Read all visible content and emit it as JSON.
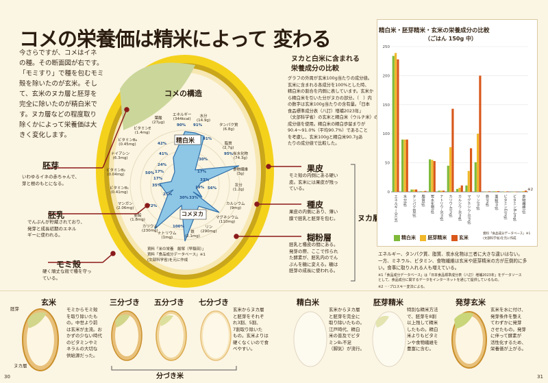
{
  "title": "コメの栄養価は精米によって 変わる",
  "intro": [
    "今さらですが、コメはイネ",
    "の種。その断面図が右です。",
    "「モミすり」で種を包むモミ",
    "殻を除いたのが玄米。そし",
    "て、玄米のヌカ層と胚芽を",
    "完全に除いたのが精白米で",
    "す。ヌカ層などの程度取り",
    "除くかによって栄養価は大",
    "きく変化します。"
  ],
  "parts": {
    "haiga": {
      "title": "胚芽",
      "text": [
        "いわゆるイネの赤ちゃんで、",
        "芽と根のもとになる。"
      ]
    },
    "hainyu": {
      "title": "胚乳",
      "text": [
        "でんぷんが貯蔵されており、",
        "発芽と成長初期のエネル",
        "ギーに使われる。"
      ]
    },
    "momigara": {
      "title": "モミ殻",
      "text": [
        "硬く頑丈な殻で種を守っ",
        "ている。"
      ]
    },
    "kahi": {
      "title": "果皮",
      "text": [
        "モミ殻の内側にある硬い",
        "皮。玄米には果皮が残っ",
        "ている。"
      ]
    },
    "shuhi": {
      "title": "種皮",
      "text": [
        "果皮の内側にあり、薄い",
        "膜で胚乳と胚芽を包む。"
      ]
    },
    "hofunso": {
      "title": "糊粉層",
      "text": [
        "胚乳と種皮の間にある。",
        "発芽の際、ここで作られ",
        "た酵素が、胚乳内のでん",
        "ぷんを糖に変える。糖は",
        "胚芽の成長に使われる。"
      ]
    },
    "nukaso": "ヌカ層"
  },
  "structure": {
    "title": "コメの構造",
    "seihaku": "精白米",
    "komenuka": "コメヌカ",
    "nutrients": [
      {
        "name": "エネルギー",
        "val": "(344kcal)",
        "pct": "90%",
        "pct2": ""
      },
      {
        "name": "水分",
        "val": "(14.9g)",
        "pct": "91%",
        "pct2": ""
      },
      {
        "name": "タンパク質",
        "val": "(6.8g)",
        "pct": "91%",
        "pct2": ""
      },
      {
        "name": "脂質",
        "val": "(2.7g)",
        "pct": "41%",
        "pct2": ""
      },
      {
        "name": "炭水化物",
        "val": "(74.3g)",
        "pct": "95%",
        "pct2": ""
      },
      {
        "name": "食物繊維",
        "val": "(3g)",
        "pct": "30%",
        "pct2": ""
      },
      {
        "name": "灰分",
        "val": "(1.2g)",
        "pct": "17%",
        "pct2": ""
      },
      {
        "name": "カルシウム",
        "val": "(9mg)",
        "pct": "33%",
        "pct2": ""
      },
      {
        "name": "マグネシウム",
        "val": "(110mg)",
        "pct": "19%",
        "pct2": ""
      },
      {
        "name": "リン",
        "val": "(290mg)",
        "pct": "56%",
        "pct2": ""
      },
      {
        "name": "鉄",
        "val": "(2.1mg)",
        "pct": "33%",
        "pct2": ""
      },
      {
        "name": "ナトリウム",
        "val": "(1mg)",
        "pct": "100%",
        "pct2": ""
      },
      {
        "name": "カリウム",
        "val": "(230mg)",
        "pct": "30%",
        "pct2": ""
      },
      {
        "name": "亜鉛",
        "val": "(1.8mg)",
        "pct": "72%",
        "pct2": ""
      },
      {
        "name": "マンガン",
        "val": "(2.06mg)",
        "pct": "25%",
        "pct2": ""
      },
      {
        "name": "ビタミンB₁",
        "val": "(0.41mg)",
        "pct": "17%",
        "pct2": ""
      },
      {
        "name": "ビタミンB₂",
        "val": "(0.04mg)",
        "pct": "35%",
        "pct2": ""
      },
      {
        "name": "ナイアシン",
        "val": "(6.3mg)",
        "pct": "50%",
        "pct2": ""
      },
      {
        "name": "ビタミンB₆",
        "val": "(0.45mg)",
        "pct": "24%",
        "pct2": ""
      },
      {
        "name": "ビタミンE",
        "val": "(1.4mg)",
        "pct": "17%",
        "pct2": ""
      },
      {
        "name": "葉酸",
        "val": "(27μg)",
        "pct": "42%",
        "pct2": ""
      }
    ],
    "source": [
      "資料「食品成分データベース」※1",
      "(文部科学省)を元に作成"
    ],
    "source_pre": "資料「米の栄養　飯塚（早稲田）」"
  },
  "nutr_head": [
    "ヌカと白米に含まれる",
    "栄養成分の比較"
  ],
  "nutr_text": [
    "グラフの外周が玄米100g当たりの成分値。",
    "玄米に含まれる各成分を100%とした時、",
    "精白米の割合を内側に表しています。玄米か",
    "ら精白米を引いた分がヌカの部分。（　）内",
    "の数字は玄米100g当たりの含有量。「日本",
    "食品標準成分表（八訂）増補2023年」",
    "（文部科学省）の玄米と精白米（ウルチ米）の",
    "成分値を使用。精白米の精白歩留まりが",
    "90.4～91.0%（平均90.7%）であること",
    "を考慮し、玄米100gと精白米90.7gあ",
    "たりの成分値で比較した。"
  ],
  "chart_data": {
    "type": "bar",
    "title": "精白米・胚芽精米・玄米の栄養成分の比較",
    "subtitle": "（ごはん 150g 中）",
    "categories": [
      "エネルギー(kcal)",
      "水分(g)",
      "タンパク質(g)",
      "脂質(g)",
      "炭水化物(g)",
      "ナトリウム(mg)",
      "カリウム(mg)",
      "カルシウム(mg)",
      "マグネシウム(mg)",
      "リン(mg)",
      "鉄(mg)",
      "亜鉛(mg)",
      "ビタミンE(mg)",
      "ビタミンB₁(mg)",
      "食物繊維(g)"
    ],
    "series": [
      {
        "name": "精白米",
        "color": "#7fba3a",
        "values": [
          234,
          90,
          4,
          1,
          56,
          2,
          45,
          5,
          11,
          51,
          0.2,
          0.9,
          0.1,
          0.03,
          0.5
        ]
      },
      {
        "name": "胚芽精米",
        "color": "#f0b82a",
        "values": [
          239,
          90,
          4,
          1,
          55,
          2,
          77,
          7,
          36,
          100,
          0.3,
          1.1,
          0.6,
          0.12,
          1.2
        ]
      },
      {
        "name": "玄米",
        "color": "#d9571a",
        "values": [
          228,
          90,
          4,
          1.5,
          53,
          2,
          143,
          11,
          75,
          200,
          0.9,
          1.2,
          0.8,
          0.24,
          2.1
        ]
      }
    ],
    "ylim": [
      0,
      250
    ],
    "yticks": [
      "0",
      "50",
      "100",
      "150",
      "200",
      "250"
    ],
    "source": [
      "資料「食品成分データベース」※1",
      "(文部科学省)を元に作成"
    ],
    "note_mark": "※2"
  },
  "right_text": [
    "エネルギー、タンパク質、脂質、炭水化物は三者に大きな違いはない。",
    "一方、ミネラル、ビタミン、食物繊維は玄米や胚芽精米の方が圧倒的に多",
    "い。食事に取り入れる人も増えている。"
  ],
  "footnote1": [
    "※1「食品成分データベース」は「日本食品標準成分表（八訂）増補2023年」をデータソース",
    "として、食品成分に関するデータをインターネットを通じて提供しているもの。"
  ],
  "footnote2": "※2 ･･･プロスキー変法による。",
  "bottom": {
    "genmai": {
      "title": "玄米",
      "labels": [
        "胚芽",
        "ヌカ層"
      ],
      "text": [
        "モミからモミ殻",
        "を取り除いたも",
        "の。中世より前",
        "は玄米が主流。お",
        "かずの少ない時代",
        "のビタミンやミ",
        "ネラルの大切な",
        "供給源だった。"
      ]
    },
    "bu": [
      {
        "title": "三分づき"
      },
      {
        "title": "五分づき"
      },
      {
        "title": "七分づき"
      }
    ],
    "bu_text": [
      "玄米からヌカ層",
      "と胚芽をそれぞ",
      "れ3割、5割、",
      "7割取り除いた",
      "もの。玄米よりは",
      "硬くなくいので食",
      "べやすい。"
    ],
    "bu_label": "分づき米",
    "seihakumai": {
      "title": "精白米",
      "text": [
        "玄米からヌカ層",
        "と胚芽を完全に",
        "取り除いたもの。",
        "江戸時代、精白",
        "米の普及でビタ",
        "ミンB₁不足",
        "（脚気）が流行。"
      ]
    },
    "haigaseimai": {
      "title": "胚芽精米",
      "text": [
        "特別な精米方法",
        "で、胚芽を8割",
        "以上残して精米",
        "したもの。精白",
        "米よりもビタミ",
        "ンや食物繊維を",
        "豊富に含む。"
      ]
    },
    "hatsugagenmai": {
      "title": "発芽玄米",
      "text": [
        "玄米を水に付け、",
        "発芽条件を整え",
        "てわずかに発芽",
        "させたもの。発芽",
        "に伴って酵素が",
        "活性化するため、",
        "栄養価が上がる。"
      ]
    }
  },
  "page_left": "30",
  "page_right": "31"
}
